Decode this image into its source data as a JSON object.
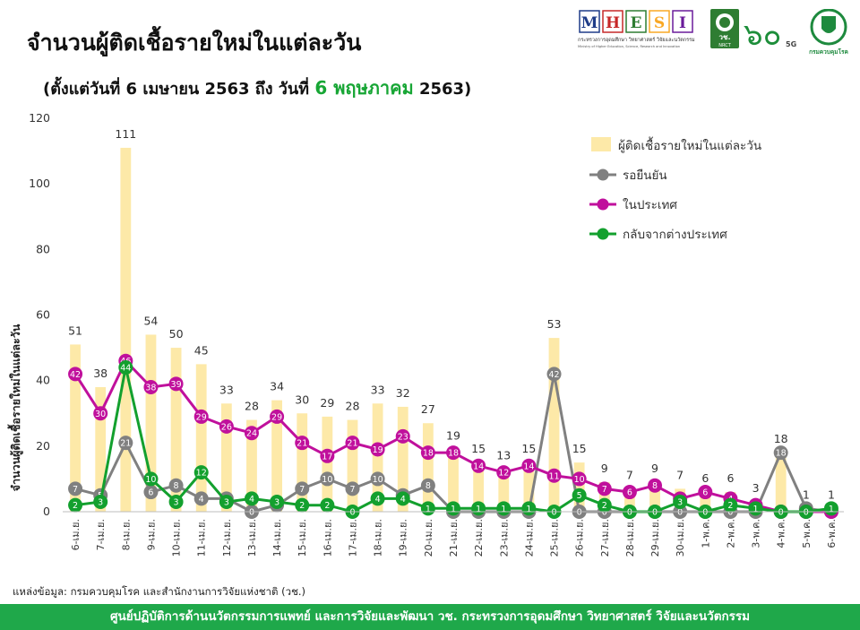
{
  "header": {
    "title": "จำนวนผู้ติดเชื้อรายใหม่ในแต่ละวัน",
    "subtitle_prefix": "(ตั้งแต่วันที่ 6 เมษายน 2563 ถึง วันที่",
    "subtitle_highlight": "6 พฤษภาคม",
    "subtitle_suffix": "2563)"
  },
  "logos": {
    "mhesi_letters": [
      "M",
      "H",
      "E",
      "S",
      "I"
    ],
    "mhesi_colors": [
      "#1f3c88",
      "#c62828",
      "#2e7d32",
      "#f9a825",
      "#6a1b9a"
    ],
    "mhesi_th": "กระทรวงการอุดมศึกษา วิทยาศาสตร์ วิจัยและนวัตกรรม",
    "mhesi_en": "Ministry of Higher Education, Science, Research and Innovation",
    "nrct": "วช.",
    "nrct_en": "NRCT",
    "anniv": "๖๐",
    "anniv_tag": "5G",
    "ddc": "กรมควบคุมโรค"
  },
  "footer": {
    "source": "แหล่งข้อมูล: กรมควบคุมโรค และสำนักงานการวิจัยแห่งชาติ (วช.)",
    "banner": "ศูนย์ปฏิบัติการด้านนวัตกรรมการแพทย์ และการวิจัยและพัฒนา   วช.   กระทรวงการอุดมศึกษา วิทยาศาสตร์ วิจัยและนวัตกรรม"
  },
  "chart_data": {
    "type": "bar",
    "ylabel": "จำนวนผู้ติดเชื้อรายใหม่ในแต่ละวัน",
    "ylim": [
      0,
      120
    ],
    "yticks": [
      0,
      20,
      40,
      60,
      80,
      100,
      120
    ],
    "grid": false,
    "legend_position": "top-right",
    "categories": [
      "6-เม.ย.",
      "7-เม.ย.",
      "8-เม.ย.",
      "9-เม.ย.",
      "10-เม.ย.",
      "11-เม.ย.",
      "12-เม.ย.",
      "13-เม.ย.",
      "14-เม.ย.",
      "15-เม.ย.",
      "16-เม.ย.",
      "17-เม.ย.",
      "18-เม.ย.",
      "19-เม.ย.",
      "20-เม.ย.",
      "21-เม.ย.",
      "22-เม.ย.",
      "23-เม.ย.",
      "24-เม.ย.",
      "25-เม.ย.",
      "26-เม.ย.",
      "27-เม.ย.",
      "28-เม.ย.",
      "29-เม.ย.",
      "30-เม.ย.",
      "1-พ.ค.",
      "2-พ.ค.",
      "3-พ.ค.",
      "4-พ.ค.",
      "5-พ.ค.",
      "6-พ.ค."
    ],
    "series": [
      {
        "name": "ผู้ติดเชื้อรายใหม่ในแต่ละวัน",
        "kind": "bar",
        "color": "#fde9a8",
        "values": [
          51,
          38,
          111,
          54,
          50,
          45,
          33,
          28,
          34,
          30,
          29,
          28,
          33,
          32,
          27,
          19,
          15,
          13,
          15,
          53,
          15,
          9,
          7,
          9,
          7,
          6,
          6,
          3,
          18,
          1,
          1
        ]
      },
      {
        "name": "รอยืนยัน",
        "kind": "line",
        "color": "#808080",
        "values": [
          7,
          5,
          21,
          6,
          8,
          4,
          4,
          0,
          2,
          7,
          10,
          7,
          10,
          5,
          8,
          0,
          0,
          0,
          0,
          42,
          0,
          0,
          0,
          0,
          0,
          0,
          0,
          0,
          18,
          1,
          0
        ]
      },
      {
        "name": "ในประเทศ",
        "kind": "line",
        "color": "#c0109c",
        "values": [
          42,
          30,
          46,
          38,
          39,
          29,
          26,
          24,
          29,
          21,
          17,
          21,
          19,
          23,
          18,
          18,
          14,
          12,
          14,
          11,
          10,
          7,
          6,
          8,
          4,
          6,
          4,
          2,
          0,
          0,
          0
        ]
      },
      {
        "name": "กลับจากต่างประเทศ",
        "kind": "line",
        "color": "#13a02e",
        "values": [
          2,
          3,
          44,
          10,
          3,
          12,
          3,
          4,
          3,
          2,
          2,
          0,
          4,
          4,
          1,
          1,
          1,
          1,
          1,
          0,
          5,
          2,
          0,
          0,
          3,
          0,
          2,
          1,
          0,
          0,
          1
        ]
      }
    ]
  }
}
